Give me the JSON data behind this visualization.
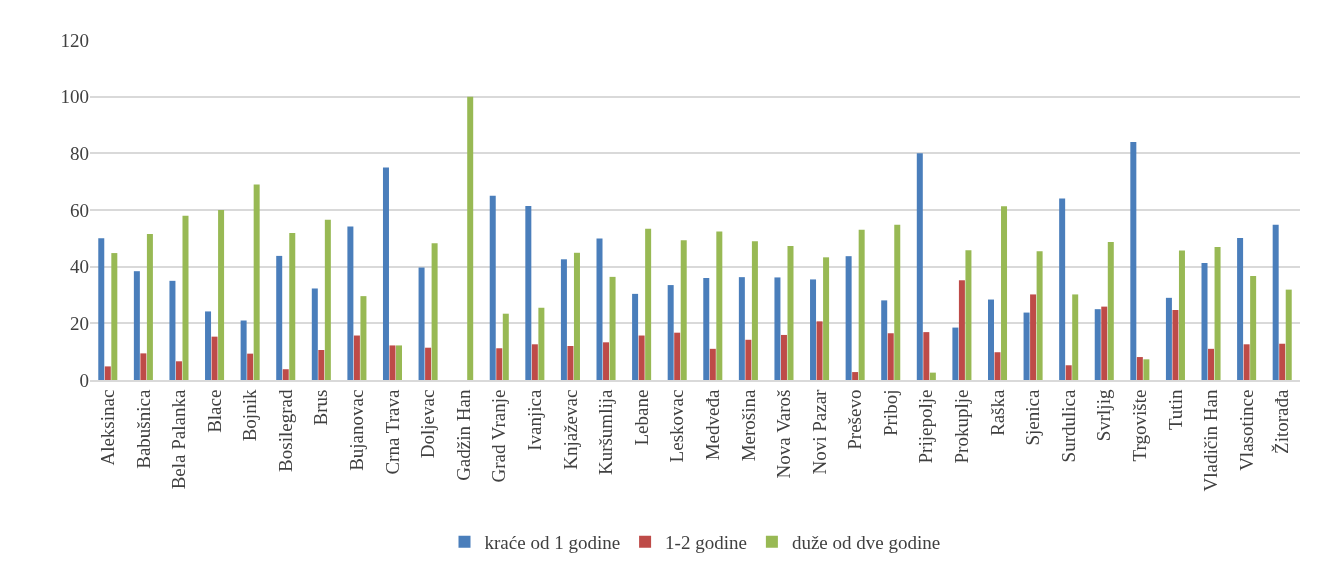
{
  "chart_data": {
    "type": "bar",
    "categories": [
      "Aleksinac",
      "Babušnica",
      "Bela Palanka",
      "Blace",
      "Bojnik",
      "Bosilegrad",
      "Brus",
      "Bujanovac",
      "Crna Trava",
      "Doljevac",
      "Gadžin Han",
      "Grad Vranje",
      "Ivanjica",
      "Knjaževac",
      "Kuršumlija",
      "Lebane",
      "Leskovac",
      "Medveđa",
      "Merošina",
      "Nova Varoš",
      "Novi Pazar",
      "Preševo",
      "Priboj",
      "Prijepolje",
      "Prokuplje",
      "Raška",
      "Sjenica",
      "Surdulica",
      "Svrljig",
      "Trgovište",
      "Tutin",
      "Vladičin Han",
      "Vlasotince",
      "Žitorađa"
    ],
    "series": [
      {
        "name": "kraće od 1 godine",
        "color": "#4a7ebb",
        "values": [
          50,
          38.4,
          35,
          24.2,
          21,
          43.8,
          32.3,
          54.2,
          75,
          39.7,
          0,
          65,
          61.4,
          42.6,
          49.9,
          30.4,
          33.5,
          36,
          36.3,
          36.2,
          35.5,
          43.7,
          28.1,
          80,
          18.5,
          28.4,
          23.8,
          64.1,
          25,
          84,
          29,
          41.3,
          50.1,
          54.8
        ]
      },
      {
        "name": "1-2 godine",
        "color": "#be4b48",
        "values": [
          4.8,
          9.4,
          6.6,
          15.3,
          9.3,
          3.8,
          10.6,
          15.7,
          12.2,
          11.4,
          0,
          11.2,
          12.6,
          12,
          13.3,
          15.7,
          16.7,
          11,
          14.2,
          15.9,
          20.7,
          2.8,
          16.5,
          16.9,
          35.2,
          9.8,
          30.2,
          5.2,
          25.9,
          8.1,
          24.7,
          11,
          12.6,
          12.8
        ]
      },
      {
        "name": "duže od dve godine",
        "color": "#98b954",
        "values": [
          44.8,
          51.5,
          58,
          60,
          69,
          51.9,
          56.6,
          29.6,
          12.2,
          48.3,
          100,
          23.4,
          25.5,
          44.9,
          36.4,
          53.4,
          49.3,
          52.4,
          49,
          47.3,
          43.3,
          53,
          54.8,
          2.6,
          45.8,
          61.3,
          45.4,
          30.2,
          48.7,
          7.3,
          45.7,
          46.9,
          36.7,
          31.9
        ]
      }
    ],
    "ylim": [
      0,
      120
    ],
    "yticks": [
      0,
      20,
      40,
      60,
      80,
      100,
      120
    ],
    "grid": "y",
    "legend": "bottom"
  }
}
